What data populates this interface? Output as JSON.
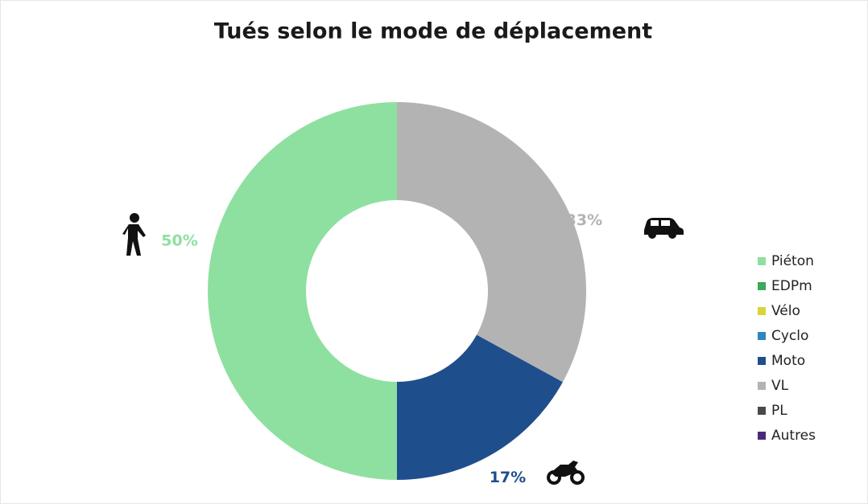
{
  "chart_data": {
    "type": "donut",
    "title": "Tués selon le mode de déplacement",
    "categories": [
      "Piéton",
      "EDPm",
      "Vélo",
      "Cyclo",
      "Moto",
      "VL",
      "PL",
      "Autres"
    ],
    "values": [
      50,
      0,
      0,
      0,
      17,
      33,
      0,
      0
    ],
    "value_labels": [
      "50%",
      null,
      null,
      null,
      "17%",
      "33%",
      null,
      null
    ],
    "colors": [
      "#8ee0a0",
      "#3aaa5a",
      "#d6d63a",
      "#2e86c1",
      "#1f4e8c",
      "#b3b3b3",
      "#4a4a4a",
      "#4b2a7a"
    ],
    "legend": "right"
  }
}
